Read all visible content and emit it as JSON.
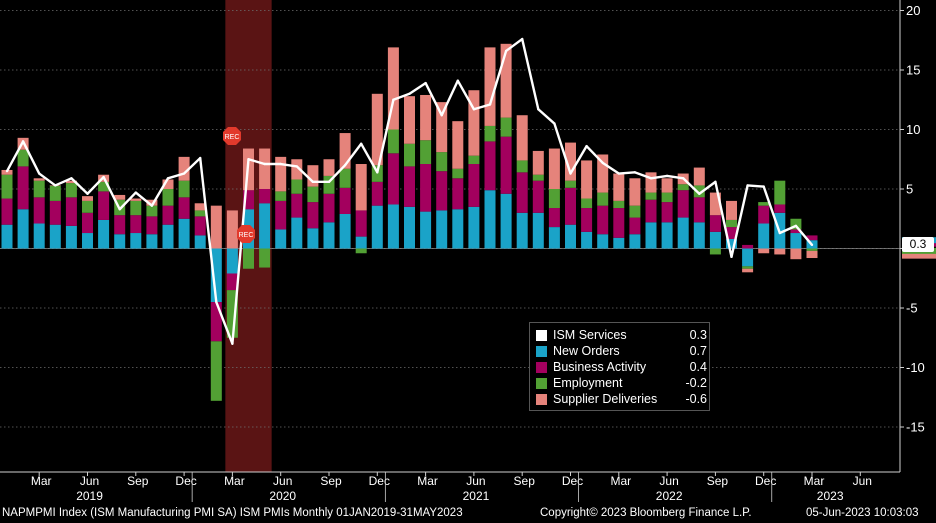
{
  "chart_data": {
    "type": "bar",
    "stacked": true,
    "title": "ISM PMIs",
    "ylim": [
      -18.5,
      20.5
    ],
    "yticks": [
      -15,
      -10,
      -5,
      0,
      5,
      10,
      15,
      20
    ],
    "ytick_labels": [
      "-15",
      "-10",
      "-5",
      "0",
      "5",
      "10",
      "15",
      "20"
    ],
    "grid": true,
    "legend_position": "bottom-center",
    "recession_shading": {
      "start_index": 14,
      "end_index": 16
    },
    "rec_markers": [
      "REC",
      "REC"
    ],
    "month_labels": [
      {
        "i": 2,
        "label": "Mar"
      },
      {
        "i": 5,
        "label": "Jun"
      },
      {
        "i": 8,
        "label": "Sep"
      },
      {
        "i": 11,
        "label": "Dec"
      },
      {
        "i": 14,
        "label": "Mar"
      },
      {
        "i": 17,
        "label": "Jun"
      },
      {
        "i": 20,
        "label": "Sep"
      },
      {
        "i": 23,
        "label": "Dec"
      },
      {
        "i": 26,
        "label": "Mar"
      },
      {
        "i": 29,
        "label": "Jun"
      },
      {
        "i": 32,
        "label": "Sep"
      },
      {
        "i": 35,
        "label": "Dec"
      },
      {
        "i": 38,
        "label": "Mar"
      },
      {
        "i": 41,
        "label": "Jun"
      },
      {
        "i": 44,
        "label": "Sep"
      },
      {
        "i": 47,
        "label": "Dec"
      },
      {
        "i": 50,
        "label": "Mar"
      },
      {
        "i": 53,
        "label": "Jun"
      }
    ],
    "year_labels": [
      {
        "i": 5.5,
        "label": "2019"
      },
      {
        "i": 17.5,
        "label": "2020"
      },
      {
        "i": 29.5,
        "label": "2021"
      },
      {
        "i": 41.5,
        "label": "2022"
      },
      {
        "i": 51.5,
        "label": "2023"
      }
    ],
    "series": [
      {
        "name": "New Orders",
        "color": "#1aa3c8",
        "last": "0.7",
        "values": [
          2.0,
          3.3,
          2.1,
          2.0,
          1.9,
          1.3,
          2.4,
          1.2,
          1.3,
          1.2,
          2.0,
          2.5,
          1.1,
          -4.5,
          -2.1,
          3.3,
          3.8,
          1.6,
          2.6,
          1.7,
          2.2,
          2.9,
          1.0,
          3.6,
          3.7,
          3.5,
          3.1,
          3.2,
          3.3,
          3.5,
          4.9,
          4.6,
          3.0,
          3.0,
          1.8,
          2.0,
          1.4,
          1.2,
          0.9,
          1.2,
          2.2,
          2.2,
          2.6,
          2.2,
          1.4,
          0.8,
          -1.5,
          2.1,
          3.0,
          1.3,
          0.7
        ]
      },
      {
        "name": "Business Activity",
        "color": "#a3005e",
        "last": "0.4",
        "values": [
          2.2,
          3.6,
          2.2,
          2.0,
          2.4,
          1.7,
          2.4,
          1.6,
          1.5,
          1.5,
          1.6,
          1.8,
          1.6,
          -3.3,
          -1.4,
          1.6,
          1.2,
          2.4,
          2.0,
          2.2,
          2.4,
          2.2,
          2.2,
          2.0,
          4.3,
          3.4,
          4.0,
          3.3,
          2.6,
          3.6,
          4.1,
          4.8,
          3.4,
          2.7,
          1.6,
          3.1,
          2.0,
          2.4,
          2.5,
          1.4,
          1.9,
          1.7,
          2.3,
          2.1,
          1.4,
          1.0,
          0.3,
          1.5,
          0.7,
          0.3,
          0.4
        ]
      },
      {
        "name": "Employment",
        "color": "#52a034",
        "last": "-0.2",
        "values": [
          2.0,
          1.4,
          1.4,
          1.3,
          1.2,
          1.0,
          0.8,
          1.3,
          1.2,
          0.9,
          1.4,
          1.4,
          0.5,
          -5.0,
          -4.0,
          -1.7,
          -1.6,
          0.8,
          1.2,
          1.3,
          1.5,
          1.6,
          -0.4,
          1.4,
          2.0,
          1.9,
          2.0,
          1.6,
          0.8,
          0.7,
          1.3,
          1.6,
          1.0,
          0.5,
          1.6,
          0.6,
          0.8,
          1.1,
          0.6,
          1.0,
          0.6,
          0.8,
          0.5,
          1.0,
          -0.5,
          0.6,
          -0.2,
          0.3,
          2.0,
          0.9,
          -0.2
        ]
      },
      {
        "name": "Supplier Deliveries",
        "color": "#e5837b",
        "last": "-0.6",
        "values": [
          0.4,
          1.0,
          0.2,
          0.0,
          0.2,
          0.4,
          0.6,
          0.4,
          0.2,
          0.5,
          0.8,
          2.0,
          0.6,
          3.6,
          3.2,
          3.5,
          3.4,
          2.9,
          1.7,
          1.8,
          1.4,
          3.0,
          3.9,
          6.0,
          6.9,
          4.0,
          3.8,
          4.2,
          4.0,
          5.5,
          6.6,
          6.2,
          3.8,
          2.0,
          3.4,
          3.2,
          3.2,
          3.2,
          2.3,
          2.3,
          1.7,
          1.2,
          0.9,
          1.5,
          1.9,
          1.6,
          -0.3,
          -0.4,
          -0.5,
          -0.9,
          -0.6
        ]
      },
      {
        "name": "ISM Services",
        "color": "#ffffff",
        "last": "0.3",
        "type": "line",
        "values": [
          6.5,
          9.0,
          6.3,
          5.3,
          5.9,
          4.6,
          6.0,
          3.3,
          4.7,
          3.6,
          5.9,
          6.3,
          7.6,
          -4.5,
          -8.0,
          7.5,
          7.1,
          7.1,
          6.9,
          5.6,
          5.6,
          7.0,
          8.8,
          6.4,
          12.5,
          13.0,
          13.9,
          11.2,
          14.1,
          11.7,
          12.1,
          16.6,
          17.6,
          11.7,
          10.5,
          6.3,
          8.6,
          7.2,
          6.3,
          6.4,
          5.9,
          6.1,
          5.9,
          4.6,
          5.6,
          -0.7,
          5.3,
          5.2,
          1.3,
          1.9,
          0.3
        ]
      }
    ]
  },
  "legend": {
    "items": [
      {
        "name": "ISM Services",
        "value": "0.3",
        "color": "#ffffff"
      },
      {
        "name": "New Orders",
        "value": "0.7",
        "color": "#1aa3c8"
      },
      {
        "name": "Business Activity",
        "value": "0.4",
        "color": "#a3005e"
      },
      {
        "name": "Employment",
        "value": "-0.2",
        "color": "#52a034"
      },
      {
        "name": "Supplier Deliveries",
        "value": "-0.6",
        "color": "#e5837b"
      }
    ]
  },
  "last_value_badge": "0.3",
  "footer": {
    "left": "NAPMPMI Index (ISM Manufacturing PMI SA) ISM PMIs  Monthly 01JAN2019-31MAY2023",
    "copyright": "Copyright© 2023 Bloomberg Finance L.P.",
    "timestamp": "05-Jun-2023 10:03:03"
  }
}
